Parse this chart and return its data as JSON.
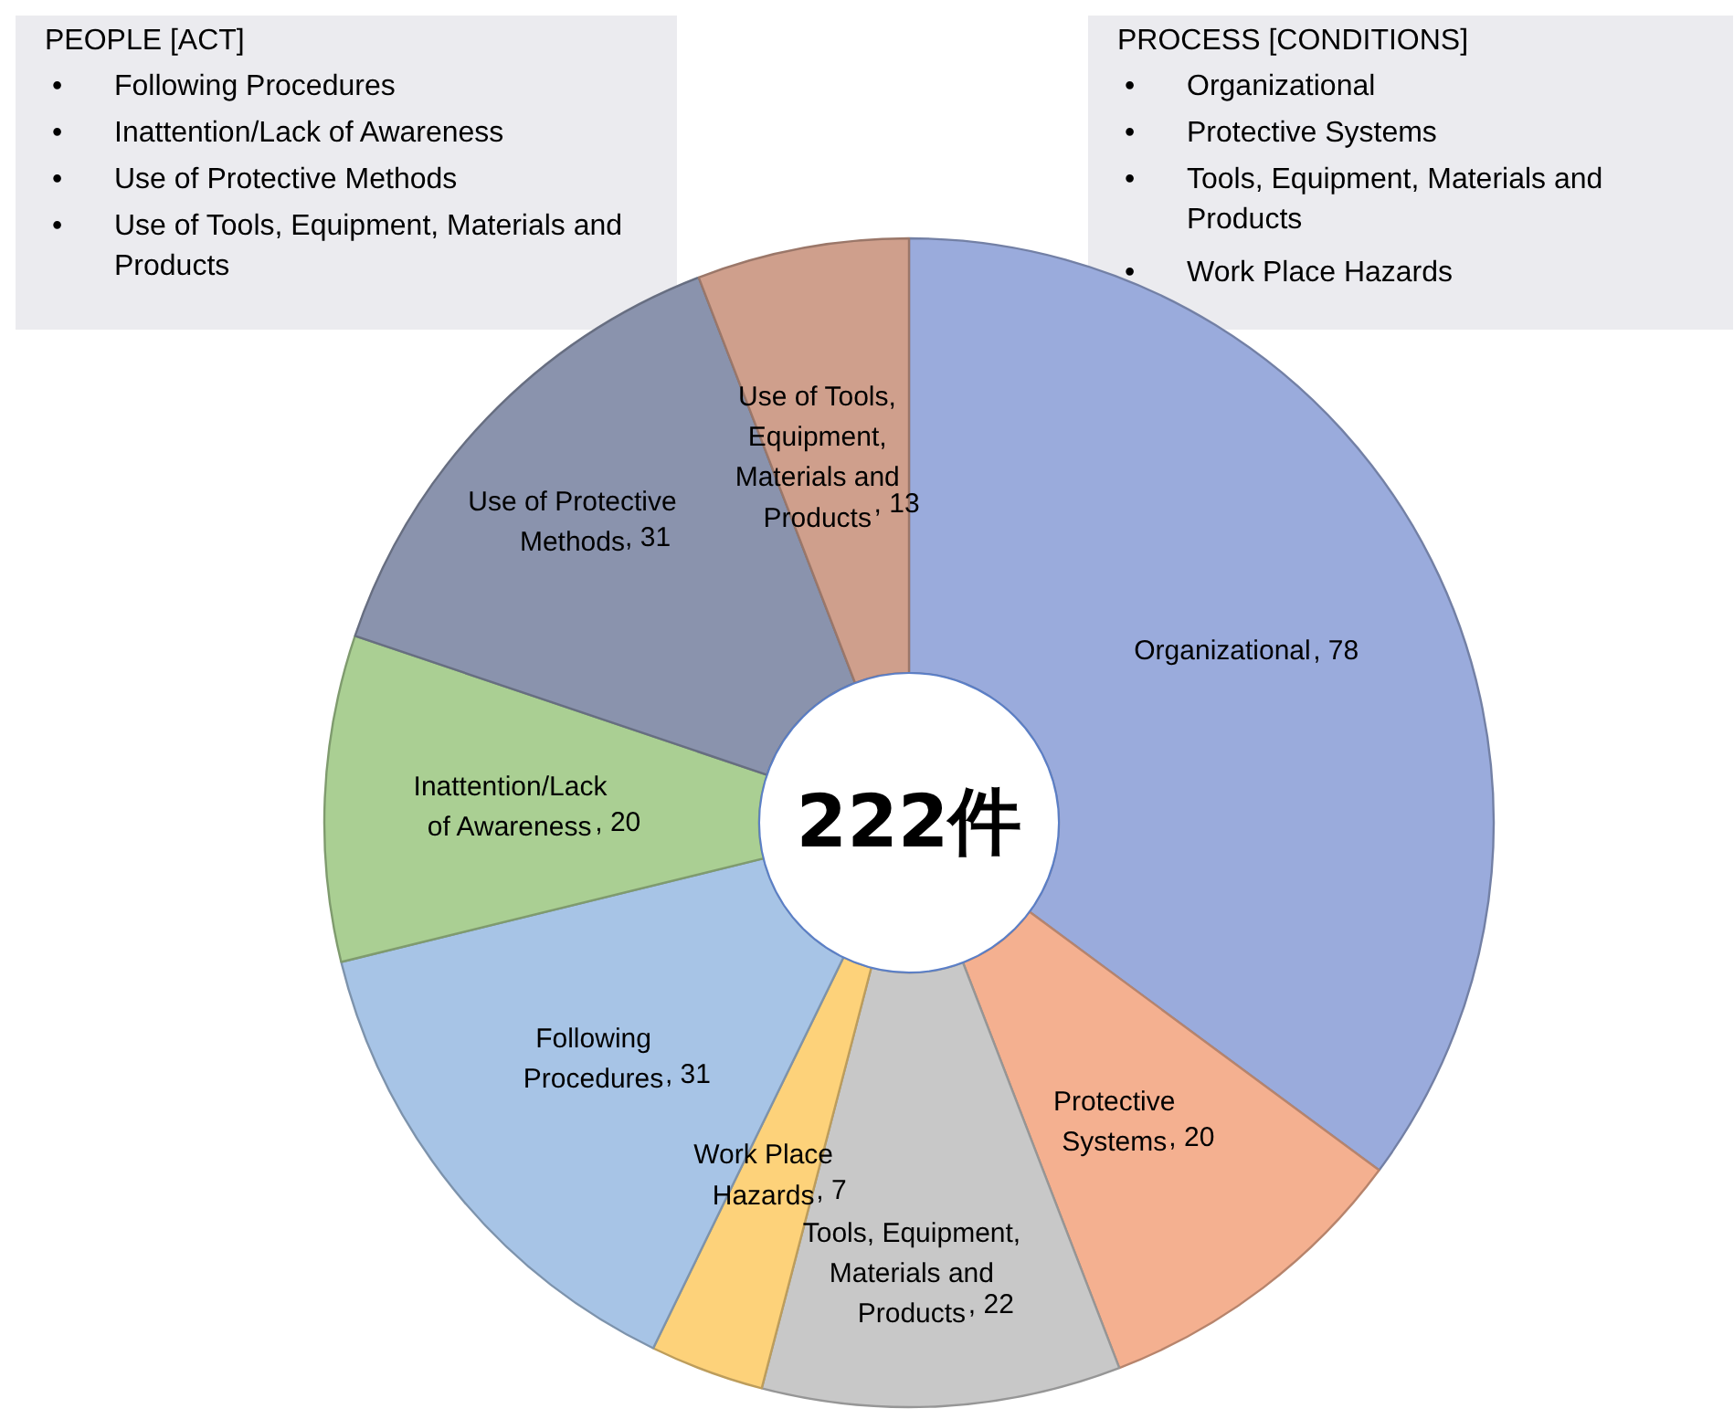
{
  "chart_data": {
    "type": "donut",
    "categories": [
      "Organizational",
      "Protective Systems",
      "Tools, Equipment, Materials and Products",
      "Work Place Hazards",
      "Following Procedures",
      "Inattention/Lack of Awareness",
      "Use of Protective Methods",
      "Use of Tools, Equipment, Materials and Products"
    ],
    "values": [
      78,
      20,
      22,
      7,
      31,
      20,
      31,
      13
    ],
    "colors": [
      "#9aabdc",
      "#f4b090",
      "#c8c8c8",
      "#fdd27a",
      "#a7c4e6",
      "#aacf93",
      "#8a93ad",
      "#cf9f8c"
    ],
    "value_labels": [
      ", 78",
      ", 20",
      ", 22",
      ", 7",
      ", 31",
      ", 20",
      ", 31",
      ", 13"
    ],
    "annotations": [
      "222件",
      "PEOPLE [ACT]",
      "• Following Procedures",
      "• Inattention/Lack of Awareness",
      "• Use of Protective Methods",
      "• Use of Tools, Equipment, Materials and Products",
      "PROCESS [CONDITIONS]",
      "• Organizational",
      "• Protective Systems",
      "• Tools, Equipment, Materials and Products",
      "• Work Place Hazards"
    ]
  }
}
